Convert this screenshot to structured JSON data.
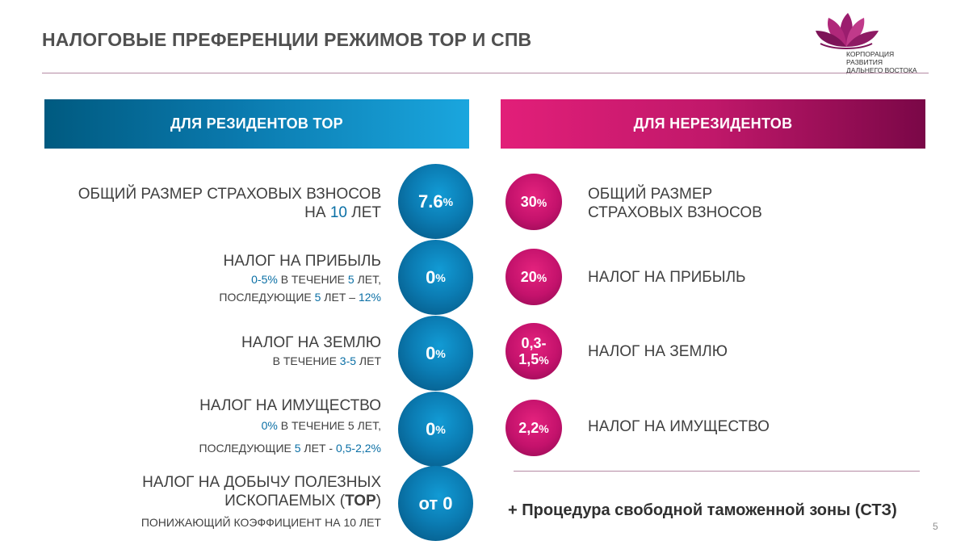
{
  "title": "НАЛОГОВЫЕ ПРЕФЕРЕНЦИИ РЕЖИМОВ ТОР И  СПВ",
  "logo": {
    "line1": "КОРПОРАЦИЯ РАЗВИТИЯ",
    "line2": "ДАЛЬНЕГО ВОСТОКА"
  },
  "headers": {
    "residents": "ДЛЯ РЕЗИДЕНТОВ ТОР",
    "nonresidents": "ДЛЯ НЕРЕЗИДЕНТОВ"
  },
  "residents": {
    "insurance": {
      "line1": "ОБЩИЙ РАЗМЕР СТРАХОВЫХ ВЗНОСОВ",
      "na": "НА ",
      "years": "10",
      "suffix": " ЛЕТ",
      "value": "7.6",
      "unit": "%"
    },
    "profit": {
      "line1": "НАЛОГ НА ПРИБЫЛЬ",
      "rate": "0-5%",
      "mid": " В ТЕЧЕНИЕ ",
      "years": "5",
      "end": " ЛЕТ,",
      "next_pre": "ПОСЛЕДУЮЩИЕ ",
      "next_years": "5",
      "next_mid": " ЛЕТ – ",
      "next_rate": "12%",
      "value": "0",
      "unit": "%"
    },
    "land": {
      "line1": "НАЛОГ НА ЗЕМЛЮ",
      "pre": "В ТЕЧЕНИЕ ",
      "years": "3-5",
      "suffix": " ЛЕТ",
      "value": "0",
      "unit": "%"
    },
    "property": {
      "line1": "НАЛОГ НА ИМУЩЕСТВО",
      "rate": "0%",
      "mid": " В ТЕЧЕНИЕ 5 ЛЕТ,",
      "next_pre": "ПОСЛЕДУЮЩИЕ ",
      "next_years": "5",
      "next_mid": " ЛЕТ - ",
      "next_rate": "0,5-2,2%",
      "value": "0",
      "unit": "%"
    },
    "mining": {
      "line1": "НАЛОГ НА ДОБЫЧУ ПОЛЕЗНЫХ",
      "line2_pre": "ИСКОПАЕМЫХ (",
      "line2_bold": "ТОР",
      "line2_end": ")",
      "line3": "ПОНИЖАЮЩИЙ КОЭФФИЦИЕНТ НА 10 ЛЕТ",
      "value": "от 0"
    }
  },
  "nonresidents": {
    "insurance": {
      "value": "30",
      "unit": "%",
      "line1": "ОБЩИЙ РАЗМЕР",
      "line2": "СТРАХОВЫХ ВЗНОСОВ"
    },
    "profit": {
      "value": "20",
      "unit": "%",
      "label": "НАЛОГ НА ПРИБЫЛЬ"
    },
    "land": {
      "value_line1": "0,3-",
      "value_line2": "1,5",
      "unit": "%",
      "label": "НАЛОГ НА ЗЕМЛЮ"
    },
    "property": {
      "value": "2,2",
      "unit": "%",
      "label": "НАЛОГ НА ИМУЩЕСТВО"
    }
  },
  "sez_note": "+ Процедура свободной таможенной зоны (СТЗ)",
  "page_number": "5",
  "colors": {
    "blue_accent": "#0a6fa5",
    "pink_accent": "#c4126c",
    "text": "#404040"
  }
}
